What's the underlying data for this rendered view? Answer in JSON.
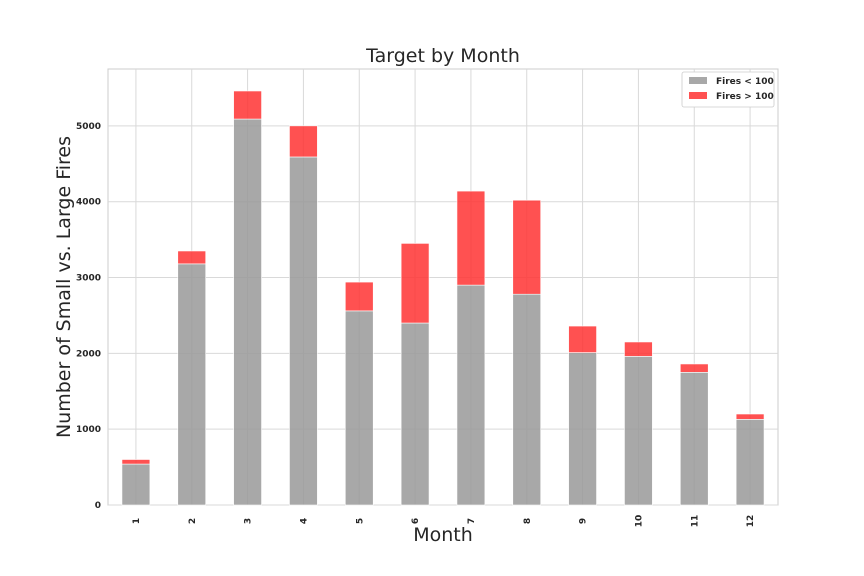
{
  "chart_data": {
    "type": "bar",
    "stacked": true,
    "title": "Target by Month",
    "xlabel": "Month",
    "ylabel": "Number of Small  vs.  Large Fires",
    "categories": [
      "1",
      "2",
      "3",
      "4",
      "5",
      "6",
      "7",
      "8",
      "9",
      "10",
      "11",
      "12"
    ],
    "series": [
      {
        "name": "Fires < 100",
        "color": "#999999",
        "values": [
          540,
          3180,
          5090,
          4590,
          2560,
          2400,
          2900,
          2780,
          2010,
          1960,
          1750,
          1130
        ]
      },
      {
        "name": "Fires > 100",
        "color": "#ff3333",
        "values": [
          60,
          170,
          370,
          410,
          380,
          1050,
          1240,
          1240,
          350,
          190,
          110,
          70
        ]
      }
    ],
    "ylim": [
      0,
      5750
    ],
    "yticks": [
      0,
      1000,
      2000,
      3000,
      4000,
      5000
    ],
    "grid": true,
    "legend": "top-right"
  }
}
